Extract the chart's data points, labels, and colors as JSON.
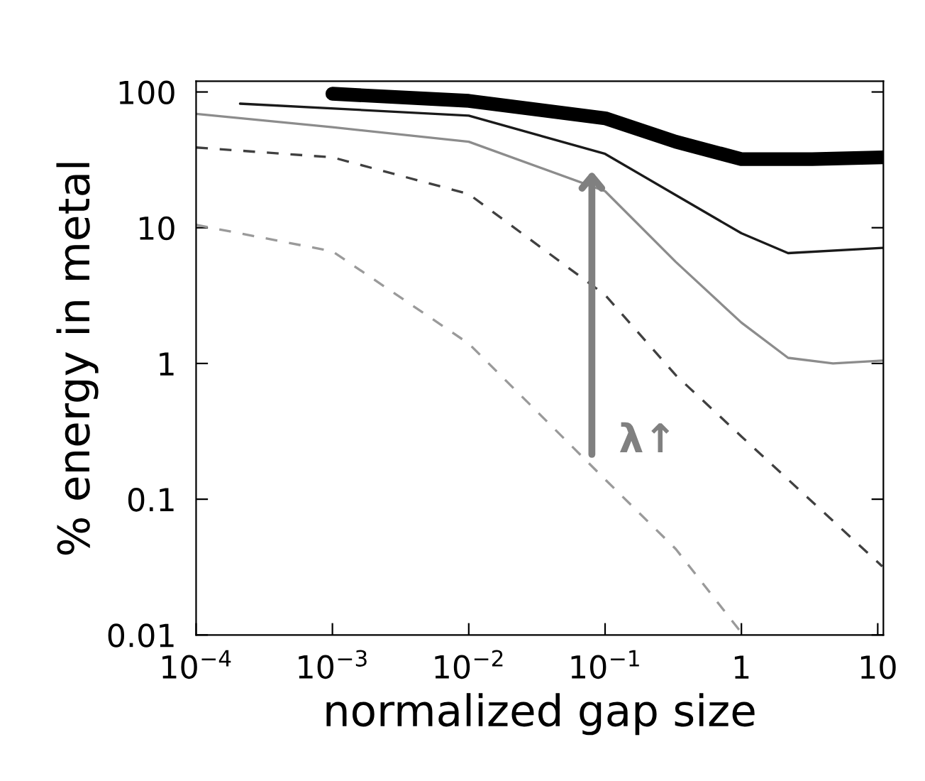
{
  "chart_data": {
    "type": "line",
    "xlabel": "normalized gap size",
    "ylabel": "% energy in metal",
    "log": "xy",
    "xlim": [
      0.0001,
      11
    ],
    "ylim": [
      0.01,
      120
    ],
    "xticks": [
      {
        "value": 0.0001,
        "label": "10$^{−4}$"
      },
      {
        "value": 0.001,
        "label": "10$^{−3}$"
      },
      {
        "value": 0.01,
        "label": "10$^{−2}$"
      },
      {
        "value": 0.1,
        "label": "10$^{−1}$"
      },
      1,
      10
    ],
    "yticks": [
      0.01,
      0.1,
      1,
      10,
      100
    ],
    "grid": false,
    "legend": false,
    "marker": "none",
    "annotations": [
      "λ↑"
    ],
    "series": [
      {
        "color": "#000000",
        "line_style": "solid",
        "x": [
          0.001,
          0.01,
          0.1,
          0.33,
          1,
          3.3,
          10.8
        ],
        "values": [
          97,
          86,
          64,
          43,
          32,
          32,
          33
        ]
      },
      {
        "color": "#1a1a1a",
        "line_style": "solid",
        "x": [
          0.00021,
          0.01,
          0.1,
          0.33,
          1,
          2.2,
          10.8
        ],
        "values": [
          82,
          67,
          35,
          17.4,
          9.1,
          6.5,
          7.1
        ]
      },
      {
        "color": "#8c8c8c",
        "line_style": "solid",
        "x": [
          0.0001,
          0.001,
          0.01,
          0.1,
          0.33,
          1,
          2.2,
          4.7,
          10.8
        ],
        "values": [
          69,
          55,
          43,
          18.6,
          5.6,
          2.0,
          1.1,
          1.0,
          1.05
        ]
      },
      {
        "color": "#404040",
        "line_style": "dashed",
        "x": [
          0.0001,
          0.001,
          0.01,
          0.1,
          0.33,
          1,
          10.8
        ],
        "values": [
          39,
          33,
          17.7,
          3.2,
          0.82,
          0.29,
          0.032
        ]
      },
      {
        "color": "#9a9a9a",
        "line_style": "dashed",
        "x": [
          0.0001,
          0.001,
          0.01,
          0.1,
          0.33,
          0.97
        ],
        "values": [
          10.5,
          6.7,
          1.4,
          0.14,
          0.043,
          0.0108
        ]
      }
    ]
  }
}
